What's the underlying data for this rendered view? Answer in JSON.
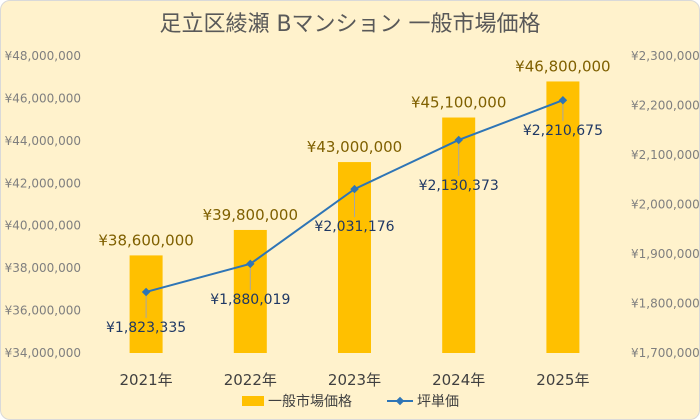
{
  "chart_data": {
    "type": "bar",
    "title": "足立区綾瀬  Bマンション  一般市場価格",
    "categories": [
      "2021年",
      "2022年",
      "2023年",
      "2024年",
      "2025年"
    ],
    "bar_series": {
      "name": "一般市場価格",
      "values": [
        38600000,
        39800000,
        43000000,
        45100000,
        46800000
      ],
      "labels": [
        "¥38,600,000",
        "¥39,800,000",
        "¥43,000,000",
        "¥45,100,000",
        "¥46,800,000"
      ],
      "color": "#ffc000"
    },
    "line_series": {
      "name": "坪単価",
      "values": [
        1823335,
        1880019,
        2031176,
        2130373,
        2210675
      ],
      "labels": [
        "¥1,823,335",
        "¥1,880,019",
        "¥2,031,176",
        "¥2,130,373",
        "¥2,210,675"
      ],
      "color": "#2e75b6"
    },
    "y_left": {
      "ylim": [
        34000000,
        48000000
      ],
      "ticks": [
        "¥34,000,000",
        "¥36,000,000",
        "¥38,000,000",
        "¥40,000,000",
        "¥42,000,000",
        "¥44,000,000",
        "¥46,000,000",
        "¥48,000,000"
      ]
    },
    "y_right": {
      "ylim": [
        1700000,
        2300000
      ],
      "ticks": [
        "¥1,700,000",
        "¥1,800,000",
        "¥1,900,000",
        "¥2,000,000",
        "¥2,100,000",
        "¥2,200,000",
        "¥2,300,000"
      ]
    },
    "grid": false,
    "legend_position": "bottom",
    "colors": {
      "background": "#fff2cc",
      "bar_label": "#7f6000",
      "line_label": "#1f3864",
      "leader_line": "#a6a6a6"
    }
  }
}
